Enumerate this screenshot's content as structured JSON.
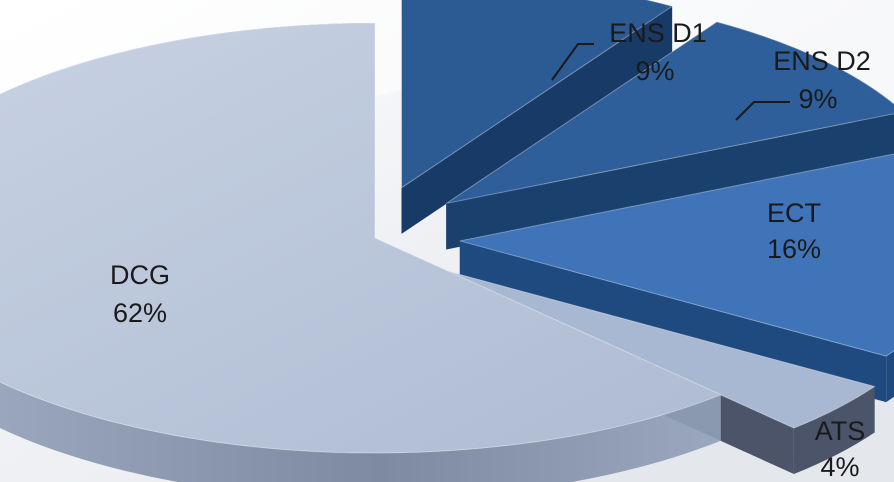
{
  "chart_data": {
    "type": "pie",
    "style": "3d-exploded",
    "title": "",
    "slices": [
      {
        "label": "DCG",
        "value": 62,
        "value_label": "62%",
        "top_color": "#bcc9dd",
        "side_color": "#8a98b0"
      },
      {
        "label": "ENS D1",
        "value": 9,
        "value_label": "9%",
        "top_color": "#2c5a93",
        "side_color": "#173a66"
      },
      {
        "label": "ENS D2",
        "value": 9,
        "value_label": "9%",
        "top_color": "#2f5f9a",
        "side_color": "#1a406e"
      },
      {
        "label": "ECT",
        "value": 16,
        "value_label": "16%",
        "top_color": "#3f74b8",
        "side_color": "#1f4a80"
      },
      {
        "label": "ATS",
        "value": 4,
        "value_label": "4%",
        "top_color": "#a9b8d2",
        "side_color": "#4b5468"
      }
    ]
  }
}
